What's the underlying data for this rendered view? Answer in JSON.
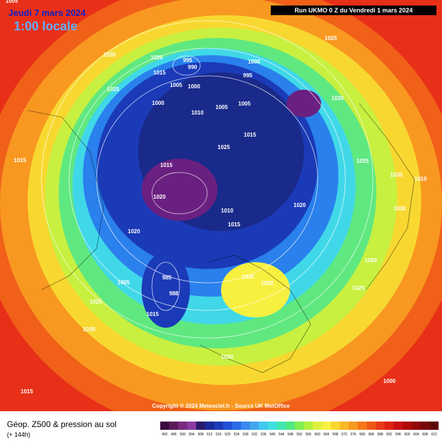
{
  "header": {
    "date": "Jeudi 7 mars 2024",
    "time": "1:00 locale",
    "run": "Run UKMO 0 Z du Vendredi 1 mars 2024"
  },
  "map": {
    "copyright": "Copyright © 2024 Meteociel.fr - Source UK MetOffice",
    "isobar_labels": [
      "1005",
      "1030",
      "1025",
      "1020",
      "1015",
      "1005",
      "1000",
      "995",
      "990",
      "1000",
      "1005",
      "1000",
      "995",
      "1010",
      "1005",
      "1020",
      "1025",
      "1015",
      "1015",
      "1020",
      "1020",
      "1010",
      "1015",
      "1020",
      "1025",
      "1030",
      "1035",
      "1030",
      "1025",
      "1030",
      "1020",
      "1015",
      "985",
      "988",
      "1005",
      "1015",
      "1030",
      "1020",
      "1025",
      "1015",
      "1010",
      "1000",
      "1015",
      "1025"
    ]
  },
  "legend": {
    "title": "Géop. Z500 & pression au sol",
    "subtitle": "(+ 144h)",
    "colorbar": {
      "values": [
        492,
        496,
        500,
        504,
        508,
        512,
        516,
        520,
        524,
        528,
        532,
        536,
        540,
        544,
        548,
        552,
        556,
        560,
        564,
        568,
        572,
        576,
        580,
        584,
        588,
        592,
        596,
        600,
        604,
        608,
        612
      ],
      "colors": [
        "#3a0a40",
        "#5a1a5a",
        "#7a2a80",
        "#8a3aa0",
        "#2a1a6a",
        "#1a2a9a",
        "#1a3ab8",
        "#2050d8",
        "#2a6ae8",
        "#3a8af0",
        "#40a8f0",
        "#40c8f0",
        "#40e0e0",
        "#40e8b0",
        "#50e880",
        "#80f050",
        "#b0f040",
        "#e0f040",
        "#f8f040",
        "#f8d830",
        "#f8b828",
        "#f89820",
        "#f87818",
        "#f05818",
        "#e83818",
        "#e02010",
        "#c81010",
        "#b00808",
        "#900808",
        "#780808",
        "#600808"
      ]
    }
  }
}
